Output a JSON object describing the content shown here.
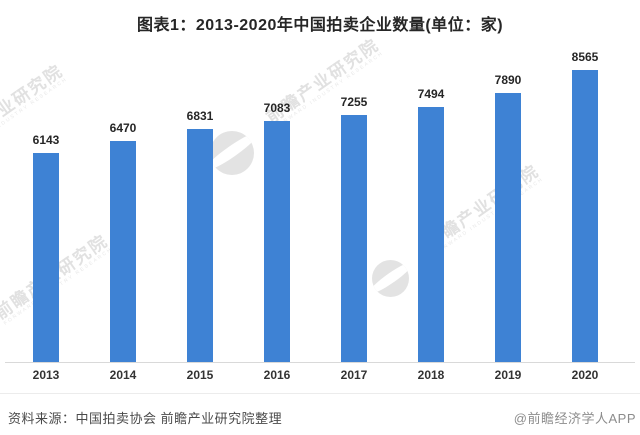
{
  "title": "图表1：2013-2020年中国拍卖企业数量(单位：家)",
  "chart_data": {
    "type": "bar",
    "title": "图表1：2013-2020年中国拍卖企业数量(单位：家)",
    "categories": [
      "2013",
      "2014",
      "2015",
      "2016",
      "2017",
      "2018",
      "2019",
      "2020"
    ],
    "values": [
      6143,
      6470,
      6831,
      7083,
      7255,
      7494,
      7890,
      8565
    ],
    "xlabel": "",
    "ylabel": "",
    "unit": "家",
    "ylim": [
      0,
      8800
    ],
    "grid": false,
    "legend": false,
    "value_labels_shown": true,
    "bar_color": "#3E82D4",
    "axis_line_color": "#d9d9d9"
  },
  "watermark": {
    "text": "前瞻产业研究院",
    "subtext": "FORWARD INDUSTRY RESEARCH",
    "logo": "qianzhan-circle-logo"
  },
  "footer": {
    "source": "资料来源：中国拍卖协会 前瞻产业研究院整理",
    "credit": "@前瞻经济学人APP"
  }
}
